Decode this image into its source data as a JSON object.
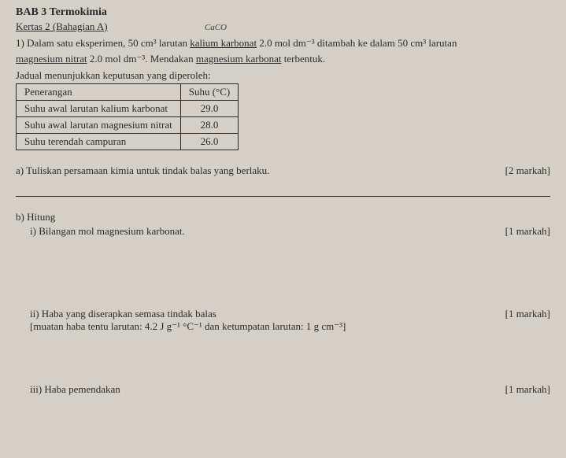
{
  "chapter": "BAB 3 Termokimia",
  "section": "Kertas 2 (Bahagian A)",
  "handwritten_note": "CaCO",
  "question_intro": "1) Dalam satu eksperimen, 50 cm³ larutan ",
  "chemical1": "kalium karbonat",
  "question_mid1": " 2.0 mol dm⁻³ ditambah ke dalam 50 cm³ larutan ",
  "chemical2": "magnesium nitrat",
  "question_mid2": " 2.0 mol dm⁻³. Mendakan ",
  "chemical3": "magnesium karbonat",
  "question_end": " terbentuk.",
  "table_caption": "Jadual menunjukkan keputusan yang diperoleh:",
  "table": {
    "headers": [
      "Penerangan",
      "Suhu (°C)"
    ],
    "rows": [
      [
        "Suhu awal larutan kalium karbonat",
        "29.0"
      ],
      [
        "Suhu awal larutan magnesium nitrat",
        "28.0"
      ],
      [
        "Suhu terendah campuran",
        "26.0"
      ]
    ]
  },
  "part_a": {
    "label": "a) Tuliskan persamaan kimia untuk tindak balas yang berlaku.",
    "marks": "[2 markah]"
  },
  "part_b": {
    "label": "b) Hitung",
    "sub_i": {
      "label": "i) Bilangan mol magnesium karbonat.",
      "marks": "[1 markah]"
    },
    "sub_ii": {
      "label": "ii) Haba yang diserapkan semasa tindak balas",
      "note": "[muatan haba tentu larutan: 4.2 J g⁻¹ °C⁻¹ dan ketumpatan larutan: 1 g cm⁻³]",
      "marks": "[1 markah]"
    },
    "sub_iii": {
      "label": "iii) Haba pemendakan",
      "marks": "[1 markah]"
    }
  }
}
